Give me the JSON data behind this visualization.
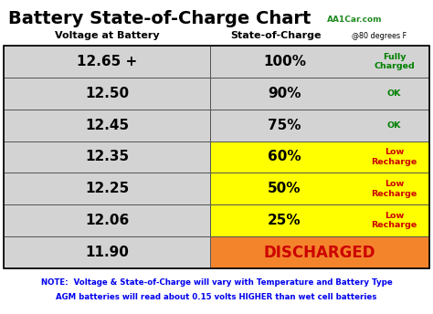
{
  "title": "Battery State-of-Charge Chart",
  "title_color": "#000000",
  "subtitle_aa1": "AA1Car.com",
  "subtitle_color": "#228B22",
  "col1_header": "Voltage at Battery",
  "col2_header": "State-of-Charge",
  "col2_header_at": "@80 degrees F",
  "rows": [
    {
      "voltage": "12.65 +",
      "charge": "100%",
      "label": "Fully\nCharged",
      "label_color": "#008000",
      "left_bg": "#d3d3d3",
      "right_bg": "#d3d3d3"
    },
    {
      "voltage": "12.50",
      "charge": "90%",
      "label": "OK",
      "label_color": "#008000",
      "left_bg": "#d3d3d3",
      "right_bg": "#d3d3d3"
    },
    {
      "voltage": "12.45",
      "charge": "75%",
      "label": "OK",
      "label_color": "#008000",
      "left_bg": "#d3d3d3",
      "right_bg": "#d3d3d3"
    },
    {
      "voltage": "12.35",
      "charge": "60%",
      "label": "Low\nRecharge",
      "label_color": "#cc0000",
      "left_bg": "#d3d3d3",
      "right_bg": "#ffff00"
    },
    {
      "voltage": "12.25",
      "charge": "50%",
      "label": "Low\nRecharge",
      "label_color": "#cc0000",
      "left_bg": "#d3d3d3",
      "right_bg": "#ffff00"
    },
    {
      "voltage": "12.06",
      "charge": "25%",
      "label": "Low\nRecharge",
      "label_color": "#cc0000",
      "left_bg": "#d3d3d3",
      "right_bg": "#ffff00"
    },
    {
      "voltage": "11.90",
      "charge": "DISCHARGED",
      "label": "",
      "label_color": "#cc0000",
      "left_bg": "#d3d3d3",
      "right_bg": "#f4842c"
    }
  ],
  "note_line1": "NOTE:  Voltage & State-of-Charge will vary with Temperature and Battery Type",
  "note_line2": "AGM batteries will read about 0.15 volts HIGHER than wet cell batteries",
  "note_color": "#0000ee",
  "background_color": "#ffffff",
  "border_color": "#555555"
}
